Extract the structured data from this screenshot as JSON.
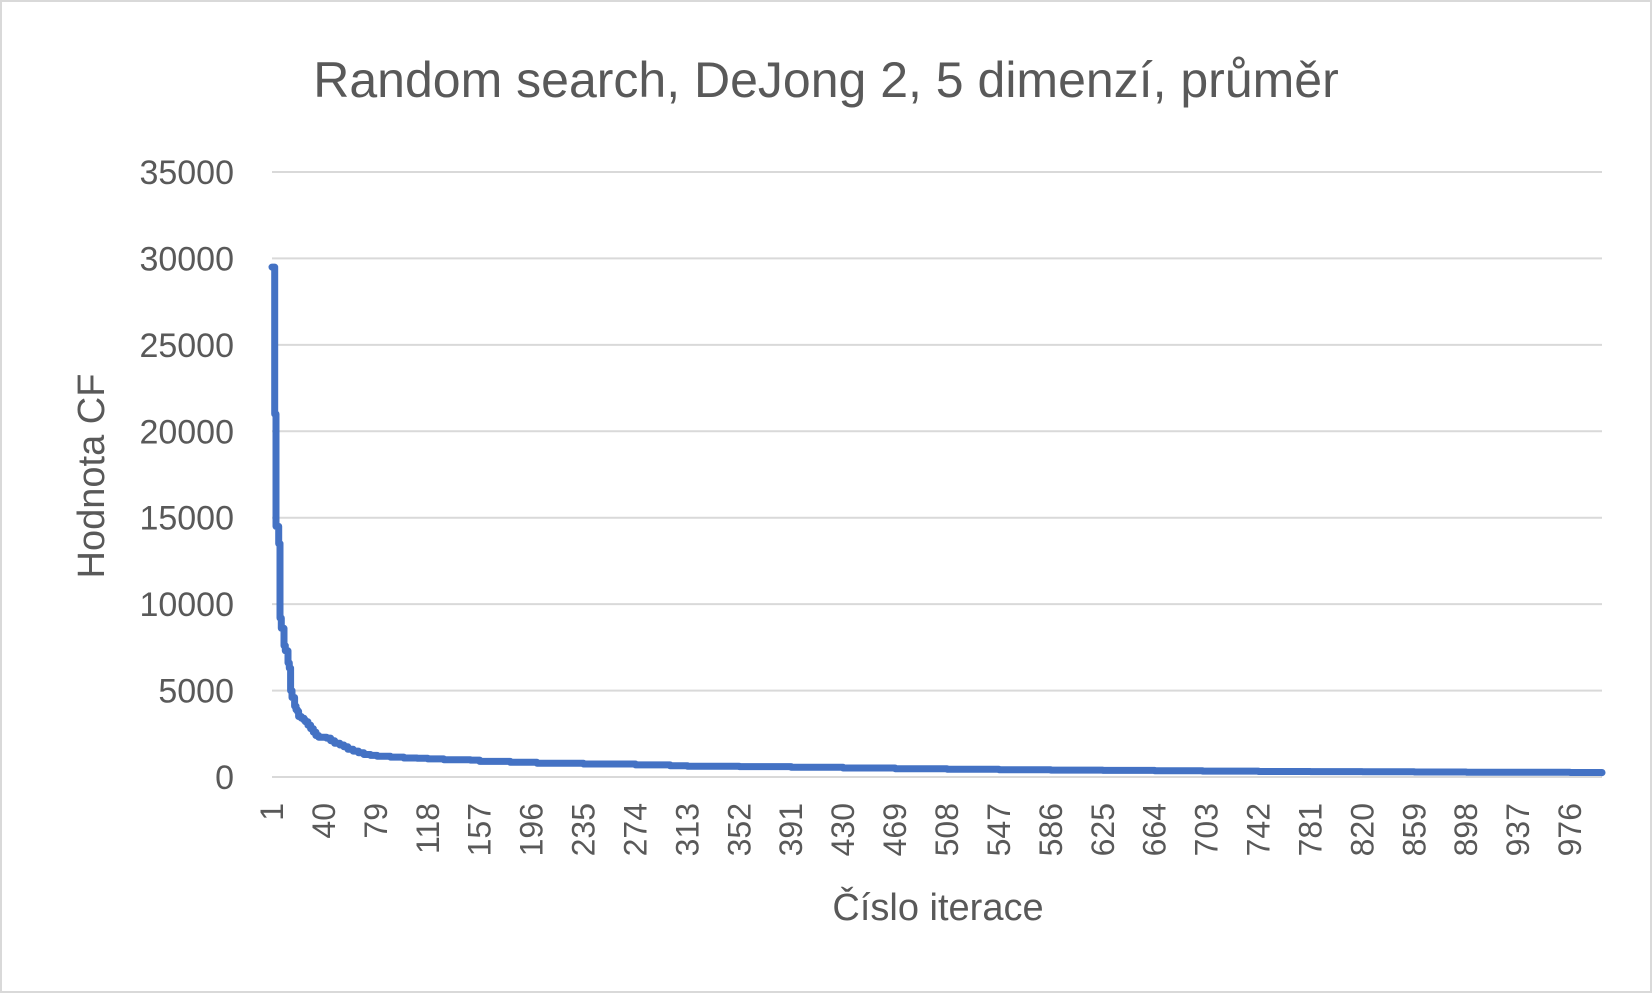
{
  "chart_data": {
    "type": "line",
    "title": "Random search, DeJong 2, 5 dimenzí, průměr",
    "xlabel": "Číslo iterace",
    "ylabel": "Hodnota CF",
    "ylim": [
      0,
      35000
    ],
    "yticks": [
      0,
      5000,
      10000,
      15000,
      20000,
      25000,
      30000,
      35000
    ],
    "xlim": [
      1,
      1000
    ],
    "xticks": [
      1,
      40,
      79,
      118,
      157,
      196,
      235,
      274,
      313,
      352,
      391,
      430,
      469,
      508,
      547,
      586,
      625,
      664,
      703,
      742,
      781,
      820,
      859,
      898,
      937,
      976
    ],
    "grid": true,
    "legend": "none",
    "colors": {
      "line": "#4472c4",
      "grid": "#d9d9d9",
      "text": "#595959"
    },
    "series": [
      {
        "x": [
          1,
          3,
          4,
          6,
          7,
          8,
          10,
          11,
          13,
          14,
          15,
          16,
          18,
          19,
          20,
          21,
          23,
          25,
          26,
          28,
          30,
          32,
          34,
          36,
          38,
          40,
          42,
          45,
          48,
          52,
          55,
          58,
          62,
          66,
          70,
          75,
          80,
          90,
          100,
          110,
          118,
          130,
          150,
          157,
          180,
          200,
          235,
          274,
          300,
          313,
          352,
          391,
          430,
          469,
          508,
          547,
          586,
          625,
          664,
          700,
          742,
          781,
          820,
          859,
          898,
          937,
          976,
          1000
        ],
        "values": [
          29500,
          21000,
          14500,
          13500,
          9200,
          8600,
          7600,
          7300,
          6600,
          6300,
          5000,
          4600,
          4100,
          3900,
          3800,
          3500,
          3400,
          3300,
          3200,
          3000,
          2800,
          2600,
          2400,
          2300,
          2300,
          2300,
          2250,
          2100,
          1950,
          1850,
          1750,
          1600,
          1500,
          1400,
          1300,
          1250,
          1200,
          1150,
          1100,
          1080,
          1050,
          1000,
          980,
          900,
          850,
          800,
          750,
          700,
          650,
          620,
          600,
          560,
          520,
          480,
          450,
          420,
          400,
          380,
          360,
          340,
          320,
          310,
          300,
          290,
          280,
          270,
          260,
          250
        ]
      }
    ]
  }
}
